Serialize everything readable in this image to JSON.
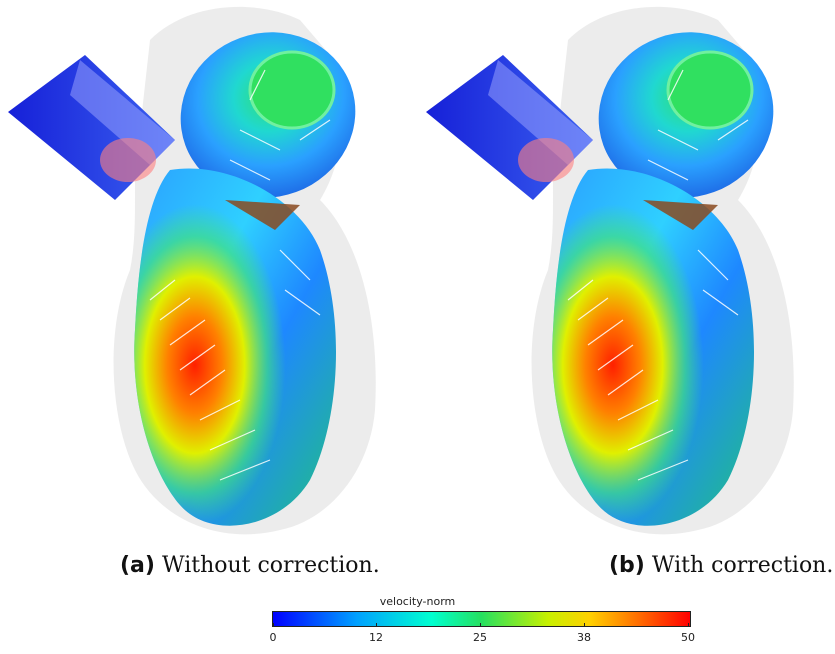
{
  "captions": {
    "a": {
      "label": "(a)",
      "text": "Without correction."
    },
    "b": {
      "label": "(b)",
      "text": "With correction."
    }
  },
  "colorbar": {
    "title": "velocity-norm",
    "ticks": [
      "0",
      "12",
      "25",
      "38",
      "50"
    ]
  }
}
